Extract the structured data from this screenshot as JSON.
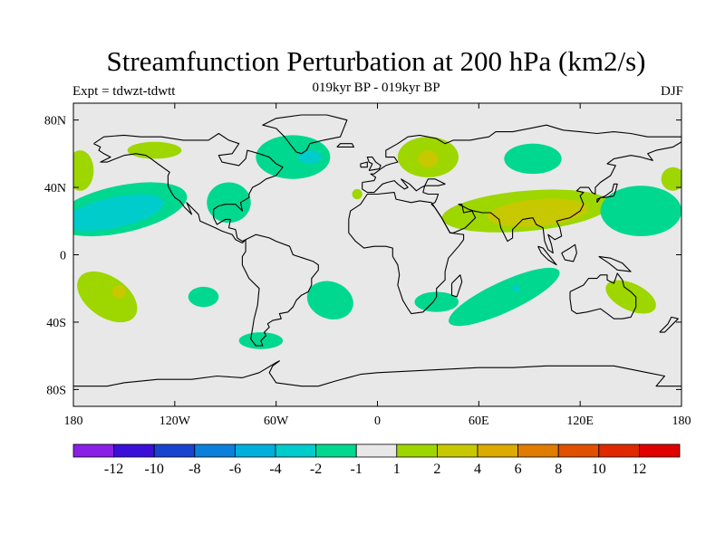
{
  "title": "Streamfunction Perturbation at 200 hPa (km2/s)",
  "subtitle": "019kyr BP - 019kyr BP",
  "left_label": "Expt = tdwzt-tdwtt",
  "right_label": "DJF",
  "map": {
    "land_color": "#000000",
    "background_color": "#e8e8e8",
    "x_ticks": [
      {
        "lon": -180,
        "label": "180"
      },
      {
        "lon": -120,
        "label": "120W"
      },
      {
        "lon": -60,
        "label": "60W"
      },
      {
        "lon": 0,
        "label": "0"
      },
      {
        "lon": 60,
        "label": "60E"
      },
      {
        "lon": 120,
        "label": "120E"
      },
      {
        "lon": 180,
        "label": "180"
      }
    ],
    "y_ticks": [
      {
        "lat": 80,
        "label": "80N"
      },
      {
        "lat": 40,
        "label": "40N"
      },
      {
        "lat": 0,
        "label": "0"
      },
      {
        "lat": -40,
        "label": "40S"
      },
      {
        "lat": -80,
        "label": "80S"
      }
    ]
  },
  "colorbar": {
    "colors": [
      "#8a1fe6",
      "#3a10d8",
      "#1844d0",
      "#0a80dc",
      "#00b0dc",
      "#00cccc",
      "#00d890",
      "#e8e8e8",
      "#9ed600",
      "#c8c800",
      "#dcaa00",
      "#e07c00",
      "#e05000",
      "#e02800",
      "#e00000"
    ],
    "labels": [
      "-12",
      "-10",
      "-8",
      "-6",
      "-4",
      "-2",
      "-1",
      "1",
      "2",
      "4",
      "6",
      "8",
      "10",
      "12"
    ]
  },
  "field_regions": [
    {
      "level": "2",
      "color": "#9ed600",
      "lon": -160,
      "lat": -25,
      "rx": 20,
      "ry": 12,
      "rot": 35
    },
    {
      "level": "4",
      "color": "#c8c800",
      "lon": -153,
      "lat": -22,
      "rx": 4,
      "ry": 4,
      "rot": 0
    },
    {
      "level": "-1",
      "color": "#00d890",
      "lon": -103,
      "lat": -25,
      "rx": 9,
      "ry": 6,
      "rot": 0
    },
    {
      "level": "-1",
      "color": "#00d890",
      "lon": -69,
      "lat": -51,
      "rx": 13,
      "ry": 5,
      "rot": 0
    },
    {
      "level": "-1",
      "color": "#00d890",
      "lon": -28,
      "lat": -27,
      "rx": 14,
      "ry": 11,
      "rot": 20
    },
    {
      "level": "-1",
      "color": "#00d890",
      "lon": 75,
      "lat": -25,
      "rx": 36,
      "ry": 9,
      "rot": -25
    },
    {
      "level": "-2",
      "color": "#00cccc",
      "lon": 82,
      "lat": -20,
      "rx": 2,
      "ry": 2,
      "rot": 0
    },
    {
      "level": "-1",
      "color": "#00d890",
      "lon": 35,
      "lat": -28,
      "rx": 13,
      "ry": 6,
      "rot": 0
    },
    {
      "level": "2",
      "color": "#9ed600",
      "lon": 150,
      "lat": -25,
      "rx": 16,
      "ry": 8,
      "rot": 25
    },
    {
      "level": "2",
      "color": "#9ed600",
      "lon": 88,
      "lat": 26,
      "rx": 50,
      "ry": 12,
      "rot": -5
    },
    {
      "level": "4",
      "color": "#c8c800",
      "lon": 95,
      "lat": 25,
      "rx": 30,
      "ry": 8,
      "rot": -5
    },
    {
      "level": "-1",
      "color": "#00d890",
      "lon": 156,
      "lat": 26,
      "rx": 24,
      "ry": 15,
      "rot": 0
    },
    {
      "level": "2",
      "color": "#9ed600",
      "lon": 30,
      "lat": 58,
      "rx": 18,
      "ry": 12,
      "rot": 0
    },
    {
      "level": "4",
      "color": "#c8c800",
      "lon": 30,
      "lat": 57,
      "rx": 6,
      "ry": 5,
      "rot": 0
    },
    {
      "level": "-1",
      "color": "#00d890",
      "lon": 92,
      "lat": 57,
      "rx": 17,
      "ry": 9,
      "rot": 0
    },
    {
      "level": "-1",
      "color": "#00d890",
      "lon": -50,
      "lat": 58,
      "rx": 22,
      "ry": 13,
      "rot": 0
    },
    {
      "level": "-2",
      "color": "#00cccc",
      "lon": -40,
      "lat": 58,
      "rx": 7,
      "ry": 4,
      "rot": 0
    },
    {
      "level": "-1",
      "color": "#00d890",
      "lon": -88,
      "lat": 31,
      "rx": 13,
      "ry": 12,
      "rot": 0
    },
    {
      "level": "2",
      "color": "#9ed600",
      "lon": -132,
      "lat": 62,
      "rx": 16,
      "ry": 5,
      "rot": 0
    },
    {
      "level": "2",
      "color": "#9ed600",
      "lon": -12,
      "lat": 36,
      "rx": 3,
      "ry": 3,
      "rot": 0
    },
    {
      "level": "-1",
      "color": "#00d890",
      "lon": -152,
      "lat": 27,
      "rx": 40,
      "ry": 14,
      "rot": -12
    },
    {
      "level": "-2",
      "color": "#00cccc",
      "lon": -156,
      "lat": 25,
      "rx": 30,
      "ry": 9,
      "rot": -12
    },
    {
      "level": "2",
      "color": "#9ed600",
      "lon": -176,
      "lat": 50,
      "rx": 8,
      "ry": 12,
      "rot": 0
    },
    {
      "level": "2",
      "color": "#9ed600",
      "lon": 175,
      "lat": 45,
      "rx": 7,
      "ry": 7,
      "rot": 0
    }
  ]
}
